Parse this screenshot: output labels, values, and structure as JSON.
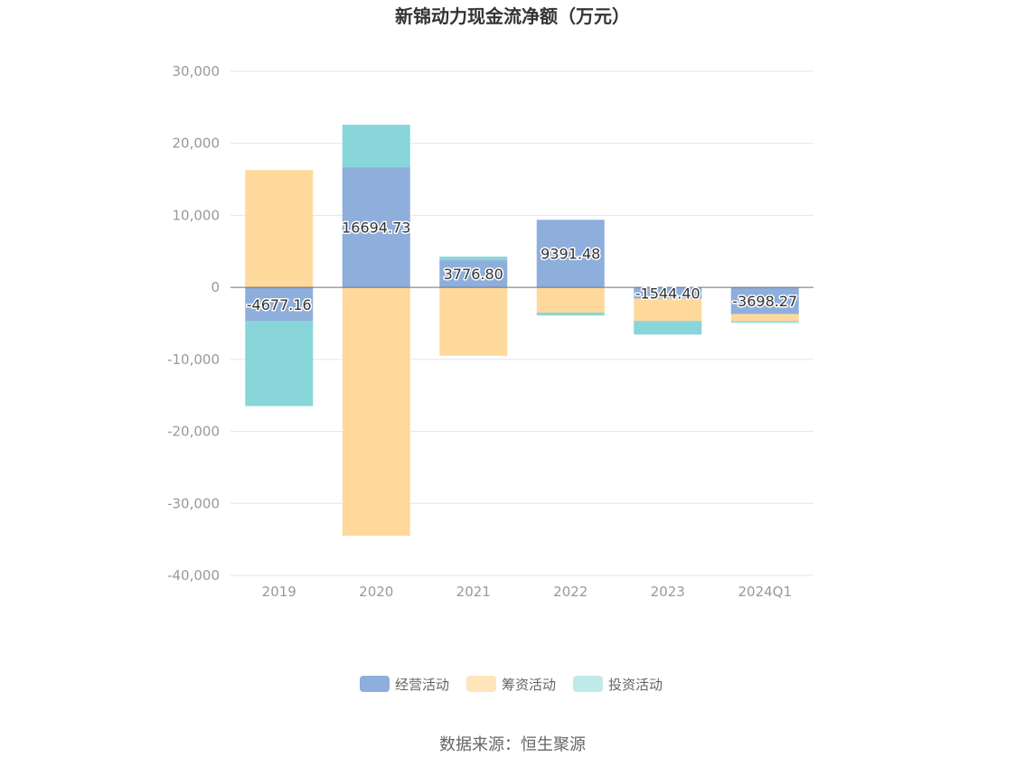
{
  "chart_data": {
    "type": "bar",
    "stacked": true,
    "title": "新锦动力现金流净额（万元）",
    "categories": [
      "2019",
      "2020",
      "2021",
      "2022",
      "2023",
      "2024Q1"
    ],
    "ylim": [
      -40000,
      30000
    ],
    "yticks": [
      30000,
      20000,
      10000,
      0,
      -10000,
      -20000,
      -30000,
      -40000
    ],
    "ytick_labels": [
      "30,000",
      "20,000",
      "10,000",
      "0",
      "-10,000",
      "-20,000",
      "-30,000",
      "-40,000"
    ],
    "grid": true,
    "legend_position": "bottom",
    "series": [
      {
        "name": "经营活动",
        "color": "#8eaedc",
        "values": [
          -4677.16,
          16694.73,
          3776.8,
          9391.48,
          -1544.4,
          -3698.27
        ],
        "labels": [
          "-4677.16",
          "16694.73",
          "3776.80",
          "9391.48",
          "-1544.40",
          "-3698.27"
        ]
      },
      {
        "name": "筹资活动",
        "color": "#ffd99b",
        "values": [
          16300,
          -34500,
          -9500,
          -3500,
          -3100,
          -1000
        ]
      },
      {
        "name": "投资活动",
        "color": "#88d6d9",
        "values": [
          -11800,
          5900,
          500,
          -400,
          -1900,
          -200
        ]
      }
    ]
  },
  "source": "数据来源：恒生聚源"
}
